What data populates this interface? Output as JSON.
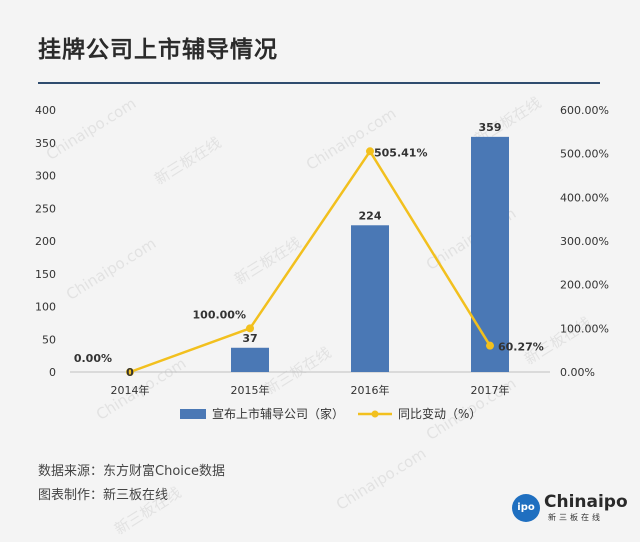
{
  "title": "挂牌公司上市辅导情况",
  "footer": {
    "source": "数据来源：东方财富Choice数据",
    "maker": "图表制作：新三板在线"
  },
  "logo": {
    "badge": "ipo",
    "name": "Chinaipo",
    "sub": "新三板在线"
  },
  "watermark": [
    "Chinaipo.com",
    "新三板在线"
  ],
  "chart_data": {
    "type": "bar",
    "categories": [
      "2014年",
      "2015年",
      "2016年",
      "2017年"
    ],
    "series": [
      {
        "name": "宣布上市辅导公司（家）",
        "type": "bar",
        "axis": "left",
        "values": [
          0,
          37,
          224,
          359
        ],
        "labels": [
          "0",
          "37",
          "224",
          "359"
        ],
        "color": "#4a78b5"
      },
      {
        "name": "同比变动（%）",
        "type": "line",
        "axis": "right",
        "values": [
          0,
          100,
          505.41,
          60.27
        ],
        "labels": [
          "0.00%",
          "100.00%",
          "505.41%",
          "60.27%"
        ],
        "color": "#f2c01e"
      }
    ],
    "y_left": {
      "min": 0,
      "max": 400,
      "ticks": [
        "0",
        "50",
        "100",
        "150",
        "200",
        "250",
        "300",
        "350",
        "400"
      ]
    },
    "y_right": {
      "min": 0,
      "max": 600,
      "ticks": [
        "0.00%",
        "100.00%",
        "200.00%",
        "300.00%",
        "400.00%",
        "500.00%",
        "600.00%"
      ]
    },
    "legend": "bottom",
    "grid": false
  }
}
